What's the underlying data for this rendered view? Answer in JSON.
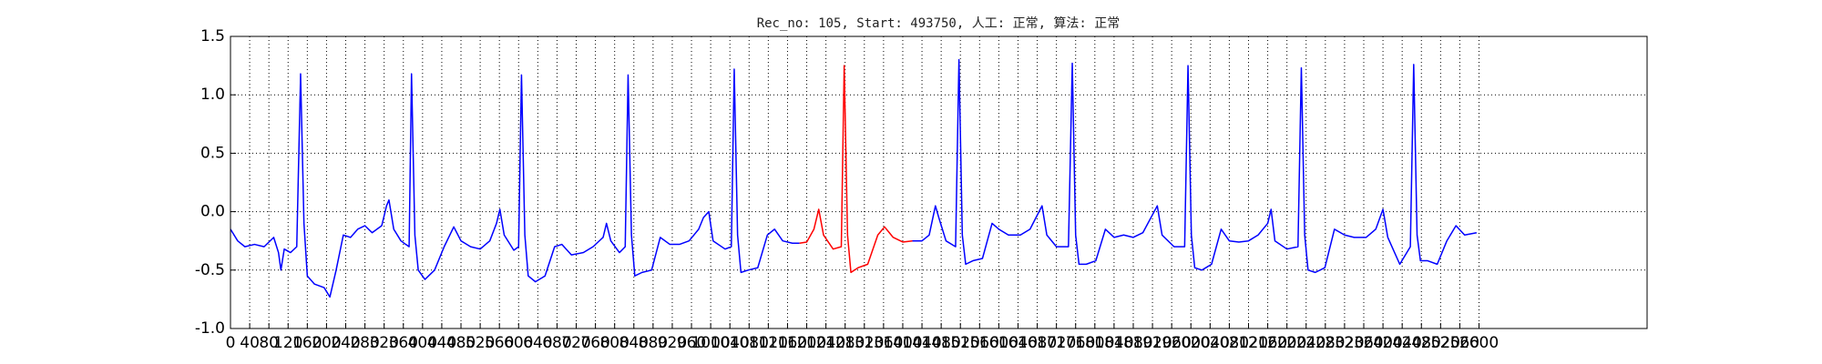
{
  "chart_data": {
    "type": "line",
    "title": "Rec_no: 105, Start: 493750, 人工: 正常, 算法: 正常",
    "x": [
      0,
      15,
      30,
      50,
      70,
      90,
      100,
      105,
      112,
      125,
      138,
      146,
      153,
      160,
      175,
      195,
      207,
      220,
      235,
      250,
      265,
      280,
      295,
      315,
      325,
      330,
      340,
      355,
      365,
      372,
      377,
      384,
      391,
      405,
      425,
      445,
      465,
      480,
      500,
      520,
      540,
      554,
      561,
      570,
      590,
      600,
      606,
      613,
      620,
      635,
      655,
      675,
      690,
      710,
      735,
      755,
      776,
      783,
      792,
      810,
      822,
      828,
      835,
      842,
      857,
      877,
      895,
      915,
      935,
      955,
      975,
      985,
      996,
      1005,
      1030,
      1043,
      1049,
      1056,
      1063,
      1078,
      1098,
      1118,
      1133,
      1150,
      1170,
      1185,
      1200,
      1215,
      1225,
      1235,
      1255,
      1272,
      1278,
      1285,
      1292,
      1307,
      1327,
      1348,
      1362,
      1380,
      1400,
      1420,
      1440,
      1455,
      1468,
      1475,
      1490,
      1510,
      1517,
      1524,
      1531,
      1546,
      1566,
      1586,
      1600,
      1620,
      1645,
      1665,
      1690,
      1700,
      1720,
      1745,
      1753,
      1760,
      1767,
      1782,
      1802,
      1822,
      1840,
      1860,
      1880,
      1900,
      1930,
      1940,
      1965,
      1987,
      1994,
      2001,
      2008,
      2023,
      2043,
      2063,
      2080,
      2100,
      2120,
      2140,
      2160,
      2167,
      2175,
      2200,
      2223,
      2230,
      2237,
      2244,
      2259,
      2279,
      2299,
      2320,
      2340,
      2365,
      2385,
      2400,
      2410,
      2435,
      2457,
      2464,
      2471,
      2478,
      2493,
      2513,
      2533,
      2552,
      2570,
      2595
    ],
    "series": [
      {
        "color": "#0000ff",
        "values": [
          -0.15,
          -0.25,
          -0.3,
          -0.28,
          -0.3,
          -0.22,
          -0.35,
          -0.5,
          -0.32,
          -0.35,
          -0.3,
          1.18,
          -0.1,
          -0.55,
          -0.62,
          -0.65,
          -0.73,
          -0.5,
          -0.2,
          -0.22,
          -0.15,
          -0.12,
          -0.18,
          -0.12,
          0.05,
          0.1,
          -0.15,
          -0.25,
          -0.28,
          -0.3,
          1.18,
          -0.2,
          -0.5,
          -0.58,
          -0.5,
          -0.3,
          -0.13,
          -0.25,
          -0.3,
          -0.32,
          -0.25,
          -0.1,
          0.02,
          -0.2,
          -0.33,
          -0.3,
          1.17,
          -0.2,
          -0.55,
          -0.6,
          -0.55,
          -0.3,
          -0.28,
          -0.37,
          -0.35,
          -0.3,
          -0.22,
          -0.1,
          -0.25,
          -0.35,
          -0.3,
          1.17,
          -0.2,
          -0.55,
          -0.52,
          -0.5,
          -0.22,
          -0.28,
          -0.28,
          -0.25,
          -0.15,
          -0.05,
          0.0,
          -0.25,
          -0.32,
          -0.3,
          1.22,
          -0.2,
          -0.52,
          -0.5,
          -0.48,
          -0.2,
          -0.15,
          -0.25,
          -0.27,
          -0.27,
          null,
          null,
          null,
          null,
          null,
          null,
          null,
          null,
          null,
          null,
          null,
          null,
          null,
          null,
          null,
          -0.25,
          -0.25,
          -0.2,
          0.05,
          -0.05,
          -0.25,
          -0.3,
          1.3,
          -0.2,
          -0.45,
          -0.42,
          -0.4,
          -0.1,
          -0.15,
          -0.2,
          -0.2,
          -0.15,
          0.05,
          -0.2,
          -0.3,
          -0.3,
          1.27,
          -0.2,
          -0.45,
          -0.45,
          -0.42,
          -0.15,
          -0.22,
          -0.2,
          -0.22,
          -0.18,
          0.05,
          -0.2,
          -0.3,
          -0.3,
          1.25,
          -0.2,
          -0.48,
          -0.5,
          -0.45,
          -0.15,
          -0.25,
          -0.26,
          -0.25,
          -0.2,
          -0.1,
          0.02,
          -0.25,
          -0.32,
          -0.3,
          1.23,
          -0.2,
          -0.5,
          -0.52,
          -0.48,
          -0.15,
          -0.2,
          -0.22,
          -0.22,
          -0.15,
          0.02,
          -0.22,
          -0.45,
          -0.3,
          1.26,
          -0.2,
          -0.42,
          -0.42,
          -0.45,
          -0.25,
          -0.12,
          -0.2,
          -0.18
        ]
      },
      {
        "color": "#ff0000",
        "values": [
          null,
          null,
          null,
          null,
          null,
          null,
          null,
          null,
          null,
          null,
          null,
          null,
          null,
          null,
          null,
          null,
          null,
          null,
          null,
          null,
          null,
          null,
          null,
          null,
          null,
          null,
          null,
          null,
          null,
          null,
          null,
          null,
          null,
          null,
          null,
          null,
          null,
          null,
          null,
          null,
          null,
          null,
          null,
          null,
          null,
          null,
          null,
          null,
          null,
          null,
          null,
          null,
          null,
          null,
          null,
          null,
          null,
          null,
          null,
          null,
          null,
          null,
          null,
          null,
          null,
          null,
          null,
          null,
          null,
          null,
          null,
          null,
          null,
          null,
          null,
          null,
          null,
          null,
          null,
          null,
          null,
          null,
          null,
          null,
          null,
          -0.27,
          -0.26,
          -0.15,
          0.02,
          -0.2,
          -0.32,
          -0.3,
          1.25,
          -0.2,
          -0.52,
          -0.48,
          -0.45,
          -0.2,
          -0.13,
          -0.22,
          -0.26,
          -0.25,
          null,
          null,
          null,
          null,
          null,
          null,
          null,
          null,
          null,
          null,
          null,
          null,
          null,
          null,
          null,
          null,
          null,
          null,
          null,
          null,
          null,
          null,
          null,
          null,
          null,
          null,
          null,
          null,
          null,
          null,
          null,
          null,
          null,
          null,
          null,
          null,
          null,
          null,
          null,
          null,
          null,
          null,
          null,
          null,
          null,
          null,
          null,
          null,
          null,
          null,
          null,
          null,
          null,
          null,
          null,
          null,
          null,
          null,
          null,
          null,
          null,
          null,
          null,
          null,
          null,
          null,
          null,
          null,
          null,
          null,
          null,
          null
        ]
      }
    ],
    "xlim": [
      0,
      2950
    ],
    "xticks": [
      0,
      40,
      80,
      120,
      160,
      200,
      240,
      280,
      320,
      360,
      400,
      440,
      480,
      520,
      560,
      600,
      640,
      680,
      720,
      760,
      800,
      840,
      880,
      920,
      960,
      1000,
      1040,
      1080,
      1120,
      1160,
      1200,
      1240,
      1280,
      1320,
      1360,
      1400,
      1440,
      1480,
      1520,
      1560,
      1600,
      1640,
      1680,
      1720,
      1760,
      1800,
      1840,
      1880,
      1920,
      1960,
      2000,
      2040,
      2080,
      2120,
      2160,
      2200,
      2240,
      2280,
      2320,
      2360,
      2400,
      2440,
      2480,
      2520,
      2560,
      2600
    ],
    "ylim": [
      -1.0,
      1.5
    ],
    "yticks": [
      {
        "value": -1.0,
        "label": "-1.0"
      },
      -0.5,
      {
        "value": 0.0,
        "label": "0.0"
      },
      0.5,
      {
        "value": 1.0,
        "label": "1.0"
      },
      1.5
    ],
    "grid": true
  }
}
